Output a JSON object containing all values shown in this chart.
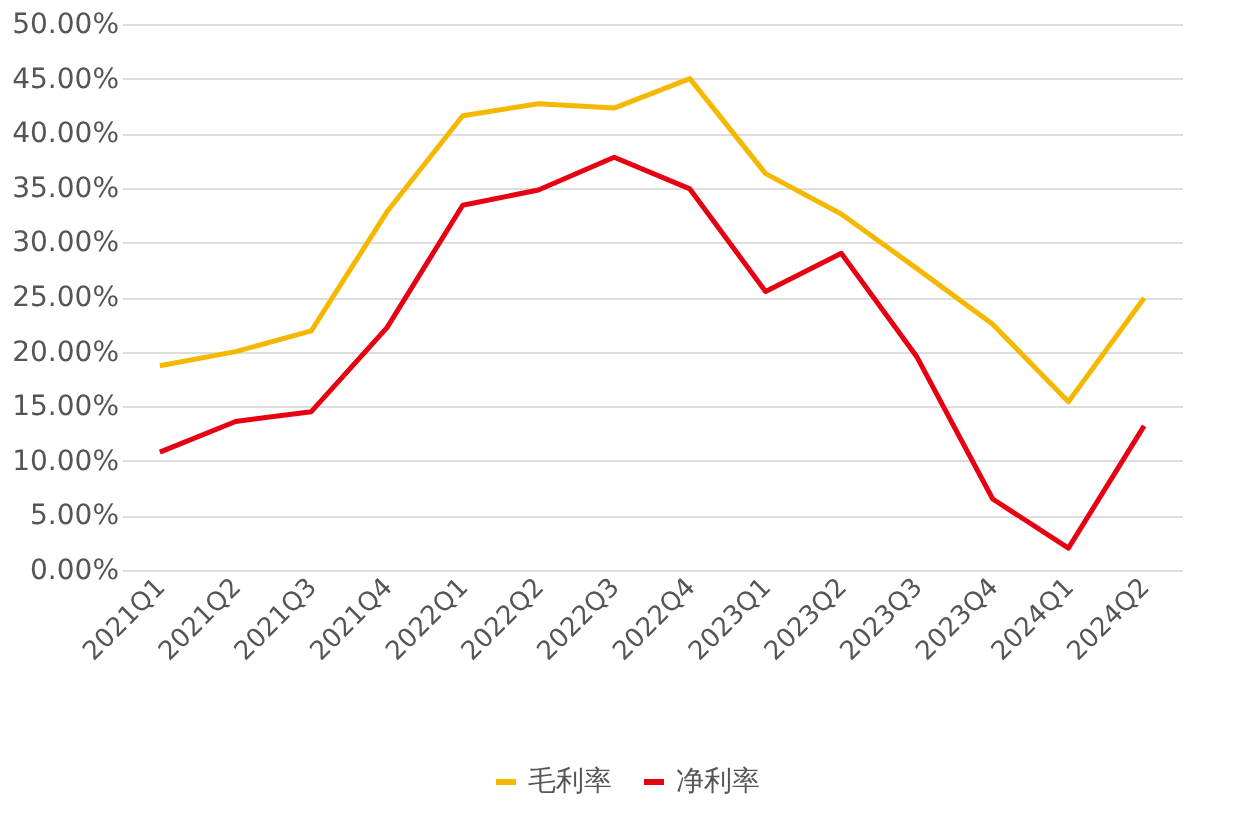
{
  "chart_data": {
    "type": "line",
    "categories": [
      "2021Q1",
      "2021Q2",
      "2021Q3",
      "2021Q4",
      "2022Q1",
      "2022Q2",
      "2022Q3",
      "2022Q4",
      "2023Q1",
      "2023Q2",
      "2023Q3",
      "2023Q4",
      "2024Q1",
      "2024Q2"
    ],
    "series": [
      {
        "name": "毛利率",
        "color": "#f5b800",
        "values": [
          18.7,
          20.0,
          21.9,
          32.8,
          41.6,
          42.7,
          42.3,
          45.0,
          36.3,
          32.6,
          27.6,
          22.5,
          15.4,
          24.9
        ]
      },
      {
        "name": "净利率",
        "color": "#e60012",
        "values": [
          10.8,
          13.6,
          14.5,
          22.2,
          33.4,
          34.8,
          37.8,
          34.9,
          25.5,
          29.0,
          19.5,
          6.5,
          2.0,
          13.2
        ]
      }
    ],
    "ylim": [
      0,
      50
    ],
    "yticks": [
      {
        "value": 0,
        "label": "0.00%"
      },
      {
        "value": 5,
        "label": "5.00%"
      },
      {
        "value": 10,
        "label": "10.00%"
      },
      {
        "value": 15,
        "label": "15.00%"
      },
      {
        "value": 20,
        "label": "20.00%"
      },
      {
        "value": 25,
        "label": "25.00%"
      },
      {
        "value": 30,
        "label": "30.00%"
      },
      {
        "value": 35,
        "label": "35.00%"
      },
      {
        "value": 40,
        "label": "40.00%"
      },
      {
        "value": 45,
        "label": "45.00%"
      },
      {
        "value": 50,
        "label": "50.00%"
      }
    ],
    "grid": "y",
    "legend": "bottom",
    "marker": "none",
    "line_style": "solid"
  }
}
